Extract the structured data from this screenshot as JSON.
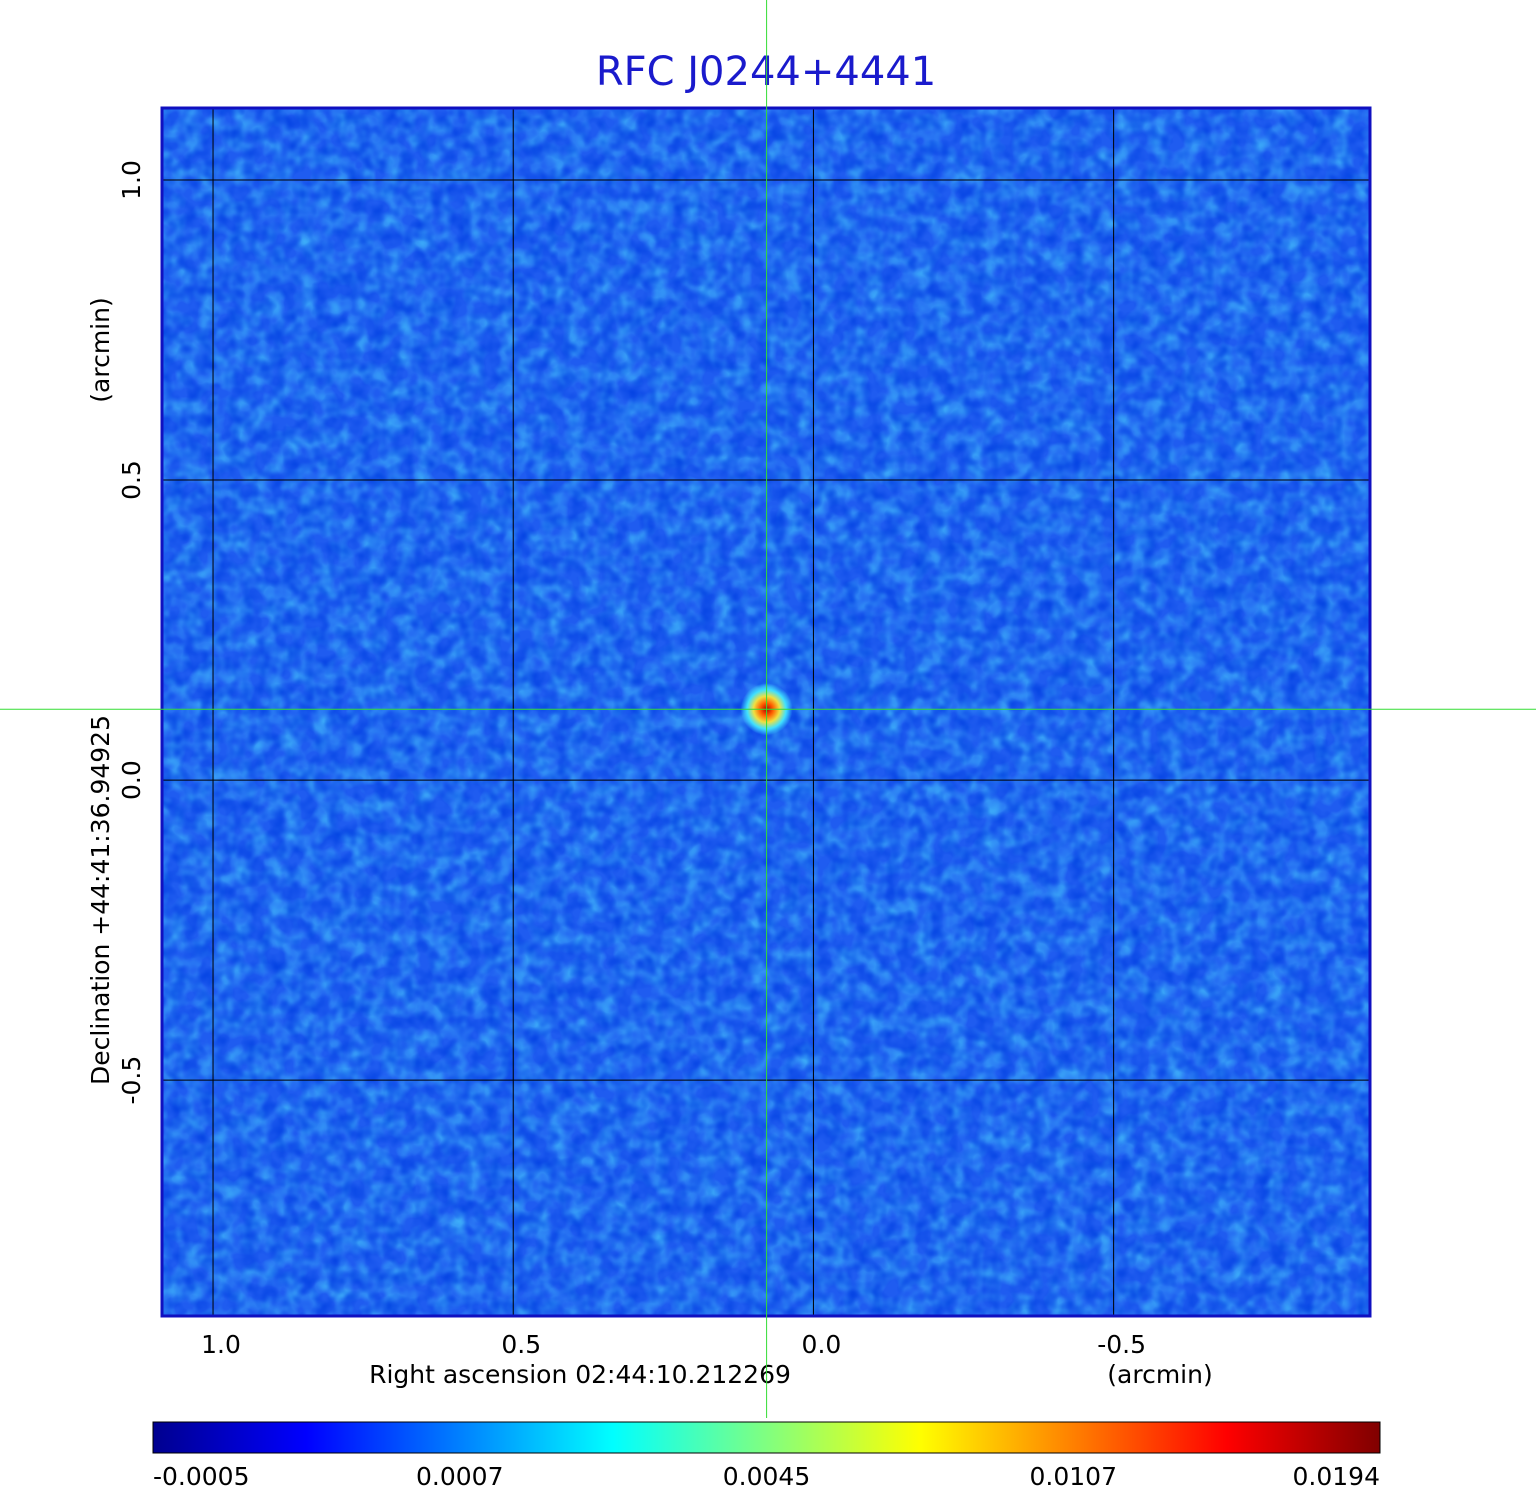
{
  "chart_data": {
    "type": "image",
    "title": "RFC J0244+4441",
    "xlabel": "Right ascension  02:44:10.212269",
    "xunit": "(arcmin)",
    "ylabel": "Declination  +44:41:36.94925",
    "yunit": "(arcmin)",
    "xlim": [
      1.085,
      -0.927
    ],
    "ylim": [
      -0.893,
      1.12
    ],
    "xticks": [
      {
        "value": 1,
        "label": "1.0"
      },
      0.5,
      {
        "value": 0,
        "label": "0.0"
      },
      -0.5
    ],
    "yticks": [
      -0.5,
      {
        "value": 0,
        "label": "0.0"
      },
      0.5,
      {
        "value": 1,
        "label": "1.0"
      }
    ],
    "grid": true,
    "frame_color": "#1010c0",
    "background_color": "#1f5cf0",
    "marker": {
      "x": 0.078,
      "y": 0.118,
      "color": "#33dd33"
    },
    "colorbar": {
      "ticks": [
        -0.0005,
        0.0007,
        0.0045,
        0.0107,
        0.0194
      ],
      "colormap": [
        "#00008f",
        "#0000ff",
        "#0080ff",
        "#00ffff",
        "#80ff80",
        "#ffff00",
        "#ff8000",
        "#ff0000",
        "#800000"
      ]
    }
  }
}
